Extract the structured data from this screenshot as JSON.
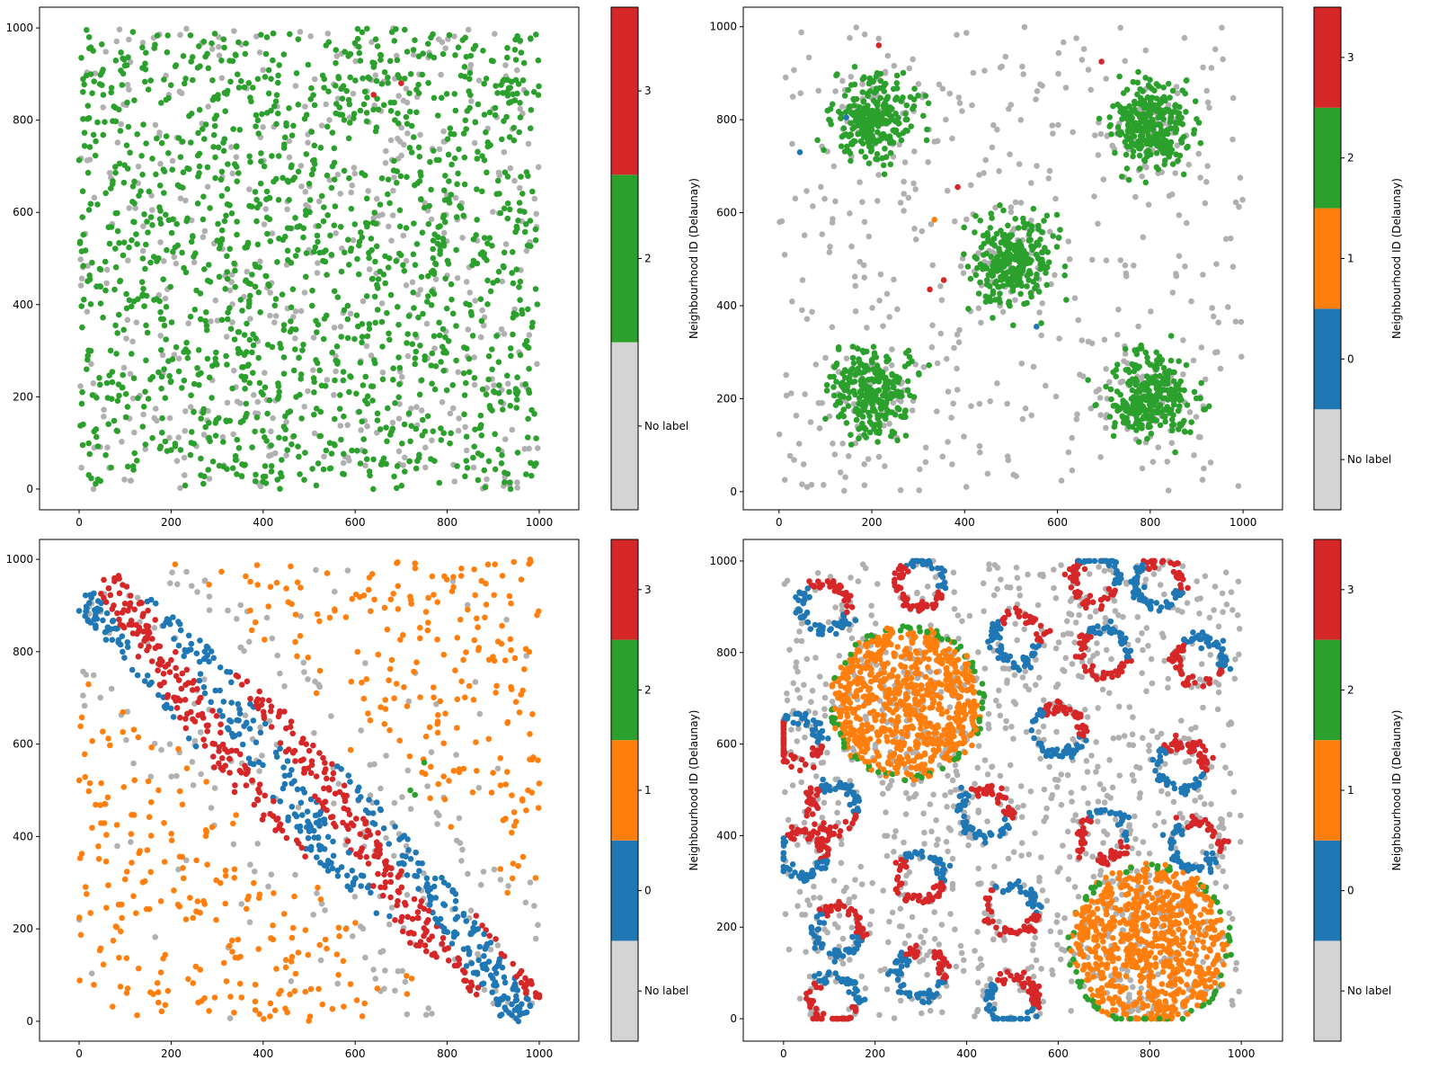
{
  "colors": {
    "no_label_point": "#b0b0b0",
    "no_label_bar": "#d4d4d4",
    "0": "#1f77b4",
    "1": "#ff7f0e",
    "2": "#2ca02c",
    "3": "#d62728"
  },
  "chart_data": [
    {
      "type": "scatter",
      "xlim": [
        -86,
        1086
      ],
      "ylim": [
        -45,
        1045
      ],
      "xticks": [
        "0",
        "200",
        "400",
        "600",
        "800",
        "1000"
      ],
      "yticks": [
        "0",
        "200",
        "400",
        "600",
        "800",
        "1000"
      ],
      "colorbar": {
        "label": "Neighbourhood ID (Delaunay)",
        "categories": [
          "No label",
          "2",
          "3"
        ]
      },
      "distribution": {
        "pattern": "uniform",
        "count": 2000,
        "label_shares": {
          "2": 0.75,
          "No label": 0.25
        }
      },
      "outliers": [
        {
          "x": 640,
          "y": 855,
          "label": "3"
        },
        {
          "x": 700,
          "y": 880,
          "label": "3"
        }
      ]
    },
    {
      "type": "scatter",
      "xlim": [
        -77,
        1085
      ],
      "ylim": [
        -39,
        1042
      ],
      "xticks": [
        "0",
        "200",
        "400",
        "600",
        "800",
        "1000"
      ],
      "yticks": [
        "0",
        "200",
        "400",
        "600",
        "800",
        "1000"
      ],
      "colorbar": {
        "label": "Neighbourhood ID (Delaunay)",
        "categories": [
          "No label",
          "0",
          "1",
          "2",
          "3"
        ]
      },
      "clusters": [
        {
          "x": 200,
          "y": 800,
          "sd": 45,
          "count": 320,
          "label": "2"
        },
        {
          "x": 800,
          "y": 790,
          "sd": 45,
          "count": 320,
          "label": "2"
        },
        {
          "x": 500,
          "y": 500,
          "sd": 45,
          "count": 320,
          "label": "2"
        },
        {
          "x": 200,
          "y": 210,
          "sd": 45,
          "count": 320,
          "label": "2"
        },
        {
          "x": 800,
          "y": 200,
          "sd": 45,
          "count": 320,
          "label": "2"
        }
      ],
      "background": {
        "count": 420,
        "label": "No label"
      },
      "outliers": [
        {
          "x": 215,
          "y": 960,
          "label": "3"
        },
        {
          "x": 695,
          "y": 925,
          "label": "3"
        },
        {
          "x": 385,
          "y": 655,
          "label": "3"
        },
        {
          "x": 325,
          "y": 435,
          "label": "3"
        },
        {
          "x": 355,
          "y": 455,
          "label": "3"
        },
        {
          "x": 335,
          "y": 585,
          "label": "1"
        },
        {
          "x": 45,
          "y": 730,
          "label": "0"
        },
        {
          "x": 555,
          "y": 355,
          "label": "0"
        },
        {
          "x": 145,
          "y": 805,
          "label": "0"
        }
      ]
    },
    {
      "type": "scatter",
      "xlim": [
        -86,
        1086
      ],
      "ylim": [
        -43,
        1043
      ],
      "xticks": [
        "0",
        "200",
        "400",
        "600",
        "800",
        "1000"
      ],
      "yticks": [
        "0",
        "200",
        "400",
        "600",
        "800",
        "1000"
      ],
      "colorbar": {
        "label": "Neighbourhood ID (Delaunay)",
        "categories": [
          "No label",
          "0",
          "1",
          "2",
          "3"
        ]
      },
      "band": {
        "from": [
          30,
          940
        ],
        "to": [
          980,
          20
        ],
        "count": 900,
        "labels": [
          "0",
          "3"
        ]
      },
      "background": {
        "count": 1000,
        "label": "1",
        "edge_label": "No label"
      },
      "outliers": [
        {
          "x": 720,
          "y": 500,
          "label": "2"
        },
        {
          "x": 730,
          "y": 490,
          "label": "2"
        },
        {
          "x": 750,
          "y": 560,
          "label": "2"
        }
      ]
    },
    {
      "type": "scatter",
      "xlim": [
        -88,
        1090
      ],
      "ylim": [
        -49,
        1047
      ],
      "xticks": [
        "0",
        "200",
        "400",
        "600",
        "800",
        "1000"
      ],
      "yticks": [
        "0",
        "200",
        "400",
        "600",
        "800",
        "1000"
      ],
      "colorbar": {
        "label": "Neighbourhood ID (Delaunay)",
        "categories": [
          "No label",
          "0",
          "1",
          "2",
          "3"
        ]
      },
      "discs": [
        {
          "x": 270,
          "y": 690,
          "r": 170,
          "count": 900,
          "label": "1",
          "edge_label": "2"
        },
        {
          "x": 800,
          "y": 160,
          "r": 180,
          "count": 900,
          "label": "1",
          "edge_label": "2"
        }
      ],
      "rings": [
        {
          "x": 90,
          "y": 900,
          "label": "0"
        },
        {
          "x": 300,
          "y": 950,
          "label": "3"
        },
        {
          "x": 510,
          "y": 830,
          "label": "0"
        },
        {
          "x": 680,
          "y": 960,
          "label": "3"
        },
        {
          "x": 820,
          "y": 950,
          "label": "0"
        },
        {
          "x": 700,
          "y": 800,
          "label": "3"
        },
        {
          "x": 910,
          "y": 780,
          "label": "3"
        },
        {
          "x": 600,
          "y": 630,
          "label": "0"
        },
        {
          "x": 870,
          "y": 550,
          "label": "0"
        },
        {
          "x": 440,
          "y": 450,
          "label": "0"
        },
        {
          "x": 700,
          "y": 400,
          "label": "3"
        },
        {
          "x": 900,
          "y": 380,
          "label": "0"
        },
        {
          "x": 110,
          "y": 460,
          "label": "3"
        },
        {
          "x": 30,
          "y": 610,
          "label": "3"
        },
        {
          "x": 40,
          "y": 360,
          "label": "0"
        },
        {
          "x": 300,
          "y": 310,
          "label": "3"
        },
        {
          "x": 500,
          "y": 240,
          "label": "3"
        },
        {
          "x": 120,
          "y": 190,
          "label": "0"
        },
        {
          "x": 300,
          "y": 100,
          "label": "0"
        },
        {
          "x": 110,
          "y": 40,
          "label": "3"
        },
        {
          "x": 500,
          "y": 40,
          "label": "0"
        }
      ],
      "background": {
        "count": 900,
        "label": "No label"
      }
    }
  ]
}
